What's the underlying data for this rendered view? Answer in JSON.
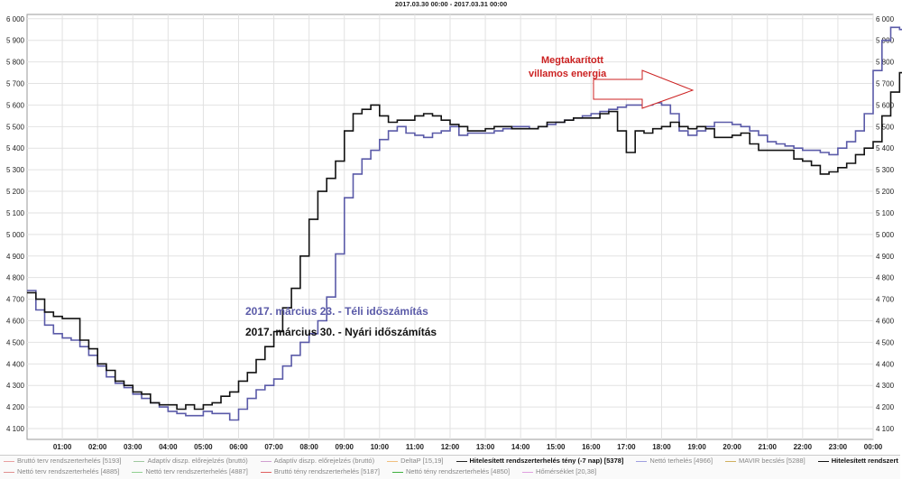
{
  "title": "2017.03.30 00:00 - 2017.03.31 00:00",
  "annotations": {
    "saved_energy_line1": "Megtakarított",
    "saved_energy_line2": "villamos energia",
    "series_label_winter": "2017. március 23. - Téli időszámítás",
    "series_label_summer": "2017. március 30. - Nyári időszámítás"
  },
  "legend": [
    {
      "label": "Bruttó terv rendszerterhelés [5193]",
      "color": "#e8a0a0",
      "bold": false
    },
    {
      "label": "Adaptív diszp. előrejelzés (bruttó)",
      "color": "#a0c8a0",
      "bold": false
    },
    {
      "label": "Adaptív diszp. előrejelzés (bruttó)",
      "color": "#d0a0d0",
      "bold": false
    },
    {
      "label": "DeltaP [15,19]",
      "color": "#f0c080",
      "bold": false
    },
    {
      "label": "Hitelesített rendszerterhelés tény (-7 nap) [5378]",
      "color": "#222222",
      "bold": true
    },
    {
      "label": "Nettó terhelés [4966]",
      "color": "#a0a0e0",
      "bold": false
    },
    {
      "label": "MAVIR becslés [5288]",
      "color": "#d0b060",
      "bold": false
    },
    {
      "label": "Hitelesített rendszerterhelés tény [5179]",
      "color": "#111111",
      "bold": true
    },
    {
      "label": "Nettó terv rendszerterhelés [4885]",
      "color": "#e09090",
      "bold": false
    },
    {
      "label": "Nettó terv rendszerterhelés [4887]",
      "color": "#90d090",
      "bold": false
    },
    {
      "label": "Bruttó tény rendszerterhelés [5187]",
      "color": "#e06060",
      "bold": false
    },
    {
      "label": "Nettó tény rendszerterhelés [4850]",
      "color": "#40b040",
      "bold": false
    },
    {
      "label": "Hőmérséklet [20,38]",
      "color": "#e0a0e0",
      "bold": false
    }
  ],
  "colors": {
    "winter": "#5a5aa8",
    "summer": "#111111",
    "annotation": "#cc2222",
    "grid": "#e2e2e2"
  },
  "chart_data": {
    "type": "line",
    "title": "2017.03.30 00:00 - 2017.03.31 00:00",
    "xlabel": "",
    "ylabel": "",
    "x_ticks": [
      "01:00",
      "02:00",
      "03:00",
      "04:00",
      "05:00",
      "06:00",
      "07:00",
      "08:00",
      "09:00",
      "10:00",
      "11:00",
      "12:00",
      "13:00",
      "14:00",
      "15:00",
      "16:00",
      "17:00",
      "18:00",
      "19:00",
      "20:00",
      "21:00",
      "22:00",
      "23:00",
      "00:00"
    ],
    "y_ticks": [
      "4 100",
      "4 200",
      "4 300",
      "4 400",
      "4 500",
      "4 600",
      "4 700",
      "4 800",
      "4 900",
      "5 000",
      "5 100",
      "5 200",
      "5 300",
      "5 400",
      "5 500",
      "5 600",
      "5 700",
      "5 800",
      "5 900",
      "6 000"
    ],
    "ylim": [
      4050,
      6020
    ],
    "xlim": [
      0,
      24
    ],
    "step_hours": 0.25,
    "grid": true,
    "series": [
      {
        "name": "2017. március 23. - Téli időszámítás",
        "values": [
          4740,
          4650,
          4580,
          4540,
          4520,
          4510,
          4480,
          4440,
          4390,
          4340,
          4310,
          4290,
          4260,
          4240,
          4220,
          4200,
          4180,
          4170,
          4160,
          4160,
          4180,
          4170,
          4170,
          4140,
          4190,
          4240,
          4280,
          4300,
          4330,
          4390,
          4440,
          4500,
          4540,
          4600,
          4710,
          4910,
          5170,
          5280,
          5350,
          5390,
          5440,
          5480,
          5500,
          5470,
          5460,
          5450,
          5470,
          5480,
          5500,
          5460,
          5470,
          5470,
          5470,
          5480,
          5490,
          5500,
          5500,
          5490,
          5500,
          5510,
          5520,
          5530,
          5540,
          5550,
          5560,
          5570,
          5580,
          5590,
          5600,
          5600,
          5600,
          5610,
          5600,
          5560,
          5480,
          5460,
          5480,
          5500,
          5520,
          5520,
          5510,
          5500,
          5480,
          5460,
          5430,
          5420,
          5410,
          5400,
          5390,
          5390,
          5380,
          5370,
          5400,
          5430,
          5480,
          5560,
          5760,
          5900,
          5960,
          5950,
          5960,
          5930,
          5890,
          5820,
          5760,
          5720,
          5700,
          5690,
          5650,
          5610,
          5550,
          5500,
          5430,
          5340,
          5250,
          5220,
          5180,
          5150,
          5120,
          5060,
          5010,
          4960,
          4900,
          4840,
          4780,
          4710
        ]
      },
      {
        "name": "2017. március 30. - Nyári időszámítás",
        "values": [
          4730,
          4700,
          4640,
          4620,
          4610,
          4610,
          4510,
          4470,
          4400,
          4370,
          4320,
          4300,
          4270,
          4260,
          4220,
          4210,
          4210,
          4190,
          4210,
          4190,
          4210,
          4220,
          4250,
          4270,
          4320,
          4360,
          4420,
          4480,
          4550,
          4660,
          4750,
          4900,
          5070,
          5200,
          5260,
          5340,
          5480,
          5560,
          5580,
          5600,
          5550,
          5520,
          5530,
          5530,
          5550,
          5560,
          5550,
          5530,
          5510,
          5500,
          5480,
          5480,
          5490,
          5500,
          5500,
          5490,
          5490,
          5490,
          5500,
          5520,
          5520,
          5530,
          5540,
          5540,
          5540,
          5560,
          5570,
          5480,
          5380,
          5480,
          5470,
          5490,
          5500,
          5520,
          5500,
          5490,
          5500,
          5490,
          5450,
          5450,
          5460,
          5470,
          5420,
          5390,
          5390,
          5390,
          5390,
          5350,
          5340,
          5320,
          5280,
          5290,
          5310,
          5330,
          5370,
          5400,
          5430,
          5550,
          5660,
          5750,
          5790,
          5730,
          5710,
          5680,
          5640,
          5550,
          5460,
          5450,
          5380,
          5290,
          5200,
          5130,
          5090,
          5030,
          4990,
          4980,
          4960,
          4950,
          4920,
          4910,
          4900,
          4880,
          4850,
          4830,
          4810,
          4800
        ]
      }
    ]
  }
}
